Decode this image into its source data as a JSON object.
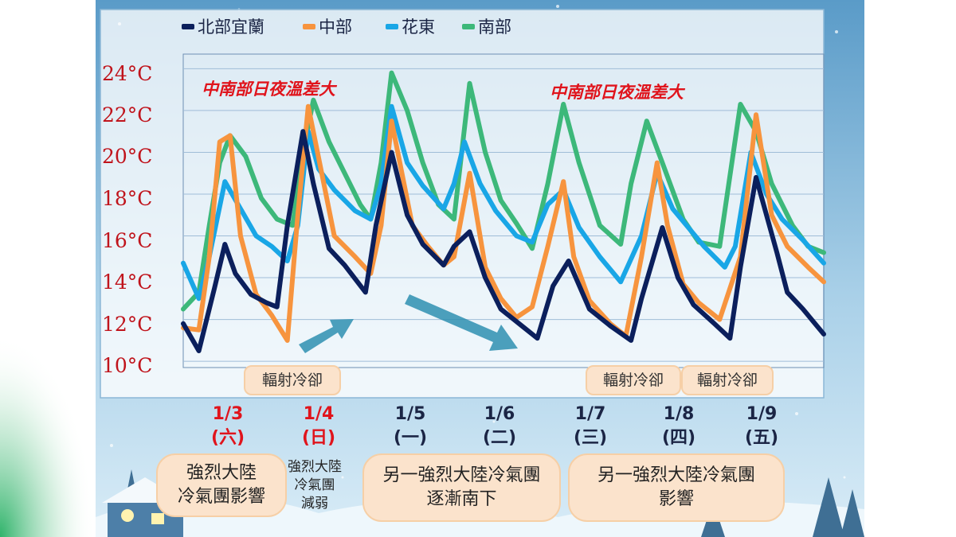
{
  "legend": [
    {
      "name": "北部宜蘭",
      "color": "#0b1f5c"
    },
    {
      "name": "中部",
      "color": "#f7943e"
    },
    {
      "name": "花東",
      "color": "#19a6e6"
    },
    {
      "name": "南部",
      "color": "#3db87a"
    }
  ],
  "annotations": {
    "left_red": "中南部日夜溫差大",
    "right_red": "中南部日夜溫差大",
    "pill1": "輻射冷卻",
    "pill2": "輻射冷卻",
    "pill3": "輻射冷卻"
  },
  "dates": [
    {
      "date": "1/3",
      "weekday": "(六)",
      "color": "#e0141c"
    },
    {
      "date": "1/4",
      "weekday": "(日)",
      "color": "#e0141c"
    },
    {
      "date": "1/5",
      "weekday": "(一)",
      "color": "#1b2545"
    },
    {
      "date": "1/6",
      "weekday": "(二)",
      "color": "#1b2545"
    },
    {
      "date": "1/7",
      "weekday": "(三)",
      "color": "#1b2545"
    },
    {
      "date": "1/8",
      "weekday": "(四)",
      "color": "#1b2545"
    },
    {
      "date": "1/9",
      "weekday": "(五)",
      "color": "#1b2545"
    }
  ],
  "boxes": {
    "box1": "強烈大陸\n冷氣團影響",
    "text2": "強烈大陸\n冷氣團\n減弱",
    "box3": "另一強烈大陸冷氣團\n逐漸南下",
    "box4": "另一強烈大陸冷氣團\n影響"
  },
  "chart_data": {
    "type": "line",
    "title": "",
    "xlabel": "",
    "ylabel": "",
    "ylim": [
      10,
      24.5
    ],
    "yticks": [
      10,
      12,
      14,
      16,
      18,
      20,
      22,
      24
    ],
    "ytick_labels": [
      "10°C",
      "12°C",
      "14°C",
      "16°C",
      "18°C",
      "20°C",
      "22°C",
      "24°C"
    ],
    "x_unit": "hour index from start of 1/3 (3-hour steps)",
    "grid": true,
    "legend_position": "top",
    "series": [
      {
        "name": "北部宜蘭",
        "color": "#0b1f5c",
        "points": [
          [
            0,
            11.8
          ],
          [
            6,
            10.5
          ],
          [
            12,
            13.5
          ],
          [
            16,
            15.6
          ],
          [
            20,
            14.2
          ],
          [
            26,
            13.2
          ],
          [
            32,
            12.8
          ],
          [
            36,
            12.6
          ],
          [
            40,
            16.5
          ],
          [
            46,
            21.0
          ],
          [
            50,
            18.5
          ],
          [
            56,
            15.4
          ],
          [
            62,
            14.6
          ],
          [
            70,
            13.3
          ],
          [
            74,
            16.5
          ],
          [
            80,
            20.0
          ],
          [
            86,
            17.0
          ],
          [
            92,
            15.6
          ],
          [
            100,
            14.6
          ],
          [
            104,
            15.5
          ],
          [
            110,
            16.2
          ],
          [
            116,
            14.0
          ],
          [
            122,
            12.5
          ],
          [
            130,
            11.7
          ],
          [
            136,
            11.1
          ],
          [
            142,
            13.6
          ],
          [
            148,
            14.8
          ],
          [
            156,
            12.5
          ],
          [
            164,
            11.7
          ],
          [
            172,
            11.0
          ],
          [
            176,
            13.0
          ],
          [
            184,
            16.4
          ],
          [
            190,
            14.0
          ],
          [
            196,
            12.7
          ],
          [
            204,
            11.8
          ],
          [
            210,
            11.1
          ],
          [
            214,
            14.5
          ],
          [
            220,
            18.8
          ],
          [
            228,
            15.2
          ],
          [
            232,
            13.3
          ],
          [
            238,
            12.5
          ],
          [
            246,
            11.3
          ]
        ]
      },
      {
        "name": "中部",
        "color": "#f7943e",
        "points": [
          [
            0,
            11.6
          ],
          [
            6,
            11.5
          ],
          [
            10,
            15.0
          ],
          [
            14,
            20.5
          ],
          [
            18,
            20.8
          ],
          [
            22,
            16.0
          ],
          [
            28,
            13.2
          ],
          [
            34,
            12.2
          ],
          [
            40,
            11.0
          ],
          [
            44,
            17.0
          ],
          [
            48,
            22.2
          ],
          [
            54,
            18.5
          ],
          [
            58,
            16.0
          ],
          [
            66,
            15.0
          ],
          [
            72,
            14.2
          ],
          [
            76,
            16.5
          ],
          [
            80,
            21.5
          ],
          [
            84,
            19.0
          ],
          [
            88,
            16.5
          ],
          [
            94,
            15.5
          ],
          [
            100,
            14.6
          ],
          [
            104,
            15.0
          ],
          [
            110,
            19.0
          ],
          [
            116,
            14.5
          ],
          [
            122,
            13.0
          ],
          [
            128,
            12.1
          ],
          [
            134,
            12.6
          ],
          [
            140,
            15.5
          ],
          [
            146,
            18.6
          ],
          [
            150,
            15.0
          ],
          [
            156,
            12.9
          ],
          [
            164,
            11.8
          ],
          [
            170,
            11.2
          ],
          [
            176,
            15.0
          ],
          [
            182,
            19.5
          ],
          [
            186,
            16.5
          ],
          [
            192,
            13.7
          ],
          [
            198,
            12.8
          ],
          [
            206,
            12.0
          ],
          [
            214,
            15.0
          ],
          [
            220,
            21.8
          ],
          [
            226,
            17.0
          ],
          [
            232,
            15.5
          ],
          [
            240,
            14.5
          ],
          [
            246,
            13.8
          ]
        ]
      },
      {
        "name": "花東",
        "color": "#19a6e6",
        "points": [
          [
            0,
            14.7
          ],
          [
            6,
            13.0
          ],
          [
            10,
            15.0
          ],
          [
            16,
            18.6
          ],
          [
            22,
            17.3
          ],
          [
            28,
            16.0
          ],
          [
            34,
            15.5
          ],
          [
            40,
            14.8
          ],
          [
            44,
            16.5
          ],
          [
            48,
            21.0
          ],
          [
            52,
            19.2
          ],
          [
            58,
            18.2
          ],
          [
            66,
            17.2
          ],
          [
            72,
            16.8
          ],
          [
            76,
            18.5
          ],
          [
            80,
            22.2
          ],
          [
            86,
            19.5
          ],
          [
            92,
            18.4
          ],
          [
            100,
            17.3
          ],
          [
            104,
            18.5
          ],
          [
            108,
            20.5
          ],
          [
            114,
            18.5
          ],
          [
            120,
            17.2
          ],
          [
            128,
            16.0
          ],
          [
            134,
            15.7
          ],
          [
            140,
            17.5
          ],
          [
            146,
            18.2
          ],
          [
            152,
            16.4
          ],
          [
            160,
            15.0
          ],
          [
            168,
            13.8
          ],
          [
            176,
            16.0
          ],
          [
            182,
            19.0
          ],
          [
            188,
            17.3
          ],
          [
            194,
            16.4
          ],
          [
            200,
            15.5
          ],
          [
            208,
            14.5
          ],
          [
            212,
            15.5
          ],
          [
            218,
            20.0
          ],
          [
            224,
            18.0
          ],
          [
            230,
            16.8
          ],
          [
            238,
            15.8
          ],
          [
            246,
            14.7
          ]
        ]
      },
      {
        "name": "南部",
        "color": "#3db87a",
        "points": [
          [
            0,
            12.5
          ],
          [
            6,
            13.3
          ],
          [
            10,
            16.5
          ],
          [
            14,
            19.5
          ],
          [
            18,
            20.8
          ],
          [
            24,
            19.8
          ],
          [
            30,
            17.8
          ],
          [
            36,
            16.8
          ],
          [
            42,
            16.5
          ],
          [
            46,
            20.0
          ],
          [
            50,
            22.5
          ],
          [
            56,
            20.5
          ],
          [
            62,
            19.0
          ],
          [
            68,
            17.5
          ],
          [
            72,
            16.8
          ],
          [
            76,
            19.5
          ],
          [
            80,
            23.8
          ],
          [
            86,
            22.0
          ],
          [
            92,
            19.5
          ],
          [
            98,
            17.5
          ],
          [
            104,
            16.8
          ],
          [
            110,
            23.3
          ],
          [
            116,
            20.0
          ],
          [
            122,
            17.7
          ],
          [
            128,
            16.6
          ],
          [
            134,
            15.4
          ],
          [
            140,
            18.5
          ],
          [
            146,
            22.3
          ],
          [
            152,
            19.5
          ],
          [
            160,
            16.5
          ],
          [
            168,
            15.6
          ],
          [
            172,
            18.5
          ],
          [
            178,
            21.5
          ],
          [
            184,
            19.5
          ],
          [
            192,
            16.8
          ],
          [
            198,
            15.7
          ],
          [
            206,
            15.5
          ],
          [
            214,
            22.3
          ],
          [
            220,
            21.0
          ],
          [
            226,
            18.5
          ],
          [
            234,
            16.5
          ],
          [
            240,
            15.5
          ],
          [
            246,
            15.2
          ]
        ]
      }
    ]
  }
}
